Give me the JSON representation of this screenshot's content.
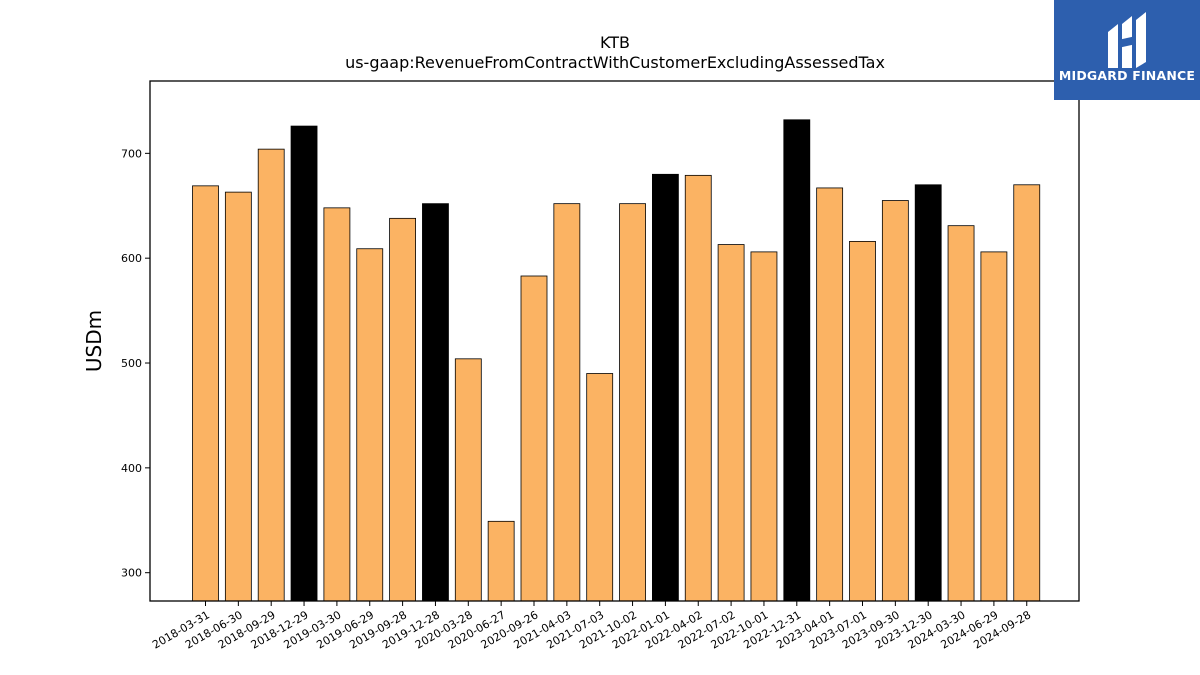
{
  "chart_data": {
    "type": "bar",
    "title": "KTB",
    "subtitle": "us-gaap:RevenueFromContractWithCustomerExcludingAssessedTax",
    "xlabel": "",
    "ylabel": "USDm",
    "ylim": [
      273,
      769
    ],
    "yticks": [
      300,
      400,
      500,
      600,
      700
    ],
    "grid": false,
    "categories": [
      "2018-03-31",
      "2018-06-30",
      "2018-09-29",
      "2018-12-29",
      "2019-03-30",
      "2019-06-29",
      "2019-09-28",
      "2019-12-28",
      "2020-03-28",
      "2020-06-27",
      "2020-09-26",
      "2021-04-03",
      "2021-07-03",
      "2021-10-02",
      "2022-01-01",
      "2022-04-02",
      "2022-07-02",
      "2022-10-01",
      "2022-12-31",
      "2023-04-01",
      "2023-07-01",
      "2023-09-30",
      "2023-12-30",
      "2024-03-30",
      "2024-06-29",
      "2024-09-28"
    ],
    "values": [
      669,
      663,
      704,
      726,
      648,
      609,
      638,
      652,
      504,
      349,
      583,
      652,
      490,
      652,
      680,
      679,
      613,
      606,
      732,
      667,
      616,
      655,
      670,
      631,
      606,
      670
    ],
    "highlight": [
      false,
      false,
      false,
      true,
      false,
      false,
      false,
      true,
      false,
      false,
      false,
      false,
      false,
      false,
      true,
      false,
      false,
      false,
      true,
      false,
      false,
      false,
      true,
      false,
      false,
      false
    ],
    "colors": {
      "bar": "#fbb363",
      "highlight": "#000000",
      "edge": "#000000"
    }
  },
  "logo": {
    "text": "MIDGARD FINANCE",
    "background": "#2d5fae"
  }
}
